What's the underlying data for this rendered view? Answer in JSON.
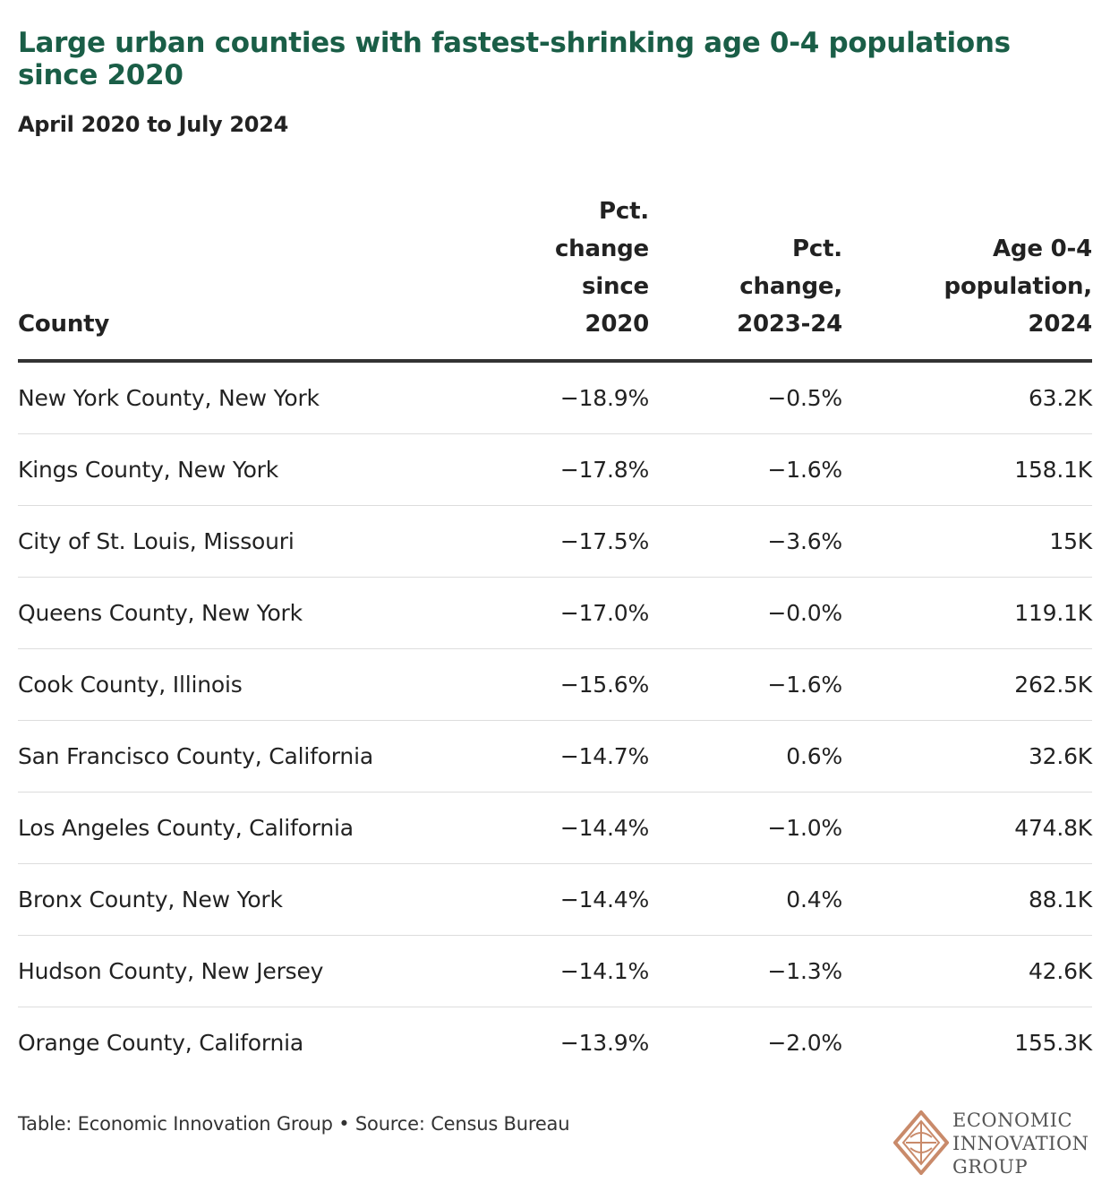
{
  "chart_data": {
    "type": "table",
    "title": "Large urban counties with fastest-shrinking age 0-4 populations since 2020",
    "subtitle": "April 2020 to July 2024",
    "columns": [
      {
        "label": "County",
        "align": "left"
      },
      {
        "label": "Pct. change since 2020",
        "align": "right"
      },
      {
        "label": "Pct. change, 2023-24",
        "align": "right"
      },
      {
        "label": "Age 0-4 population, 2024",
        "align": "right"
      }
    ],
    "rows": [
      {
        "county": "New York County, New York",
        "pct_change_since_2020": "−18.9%",
        "pct_change_2023_24": "−0.5%",
        "age_0_4_population_2024": "63.2K"
      },
      {
        "county": "Kings County, New York",
        "pct_change_since_2020": "−17.8%",
        "pct_change_2023_24": "−1.6%",
        "age_0_4_population_2024": "158.1K"
      },
      {
        "county": "City of St. Louis, Missouri",
        "pct_change_since_2020": "−17.5%",
        "pct_change_2023_24": "−3.6%",
        "age_0_4_population_2024": "15K"
      },
      {
        "county": "Queens County, New York",
        "pct_change_since_2020": "−17.0%",
        "pct_change_2023_24": "−0.0%",
        "age_0_4_population_2024": "119.1K"
      },
      {
        "county": "Cook County, Illinois",
        "pct_change_since_2020": "−15.6%",
        "pct_change_2023_24": "−1.6%",
        "age_0_4_population_2024": "262.5K"
      },
      {
        "county": "San Francisco County, California",
        "pct_change_since_2020": "−14.7%",
        "pct_change_2023_24": "0.6%",
        "age_0_4_population_2024": "32.6K"
      },
      {
        "county": "Los Angeles County, California",
        "pct_change_since_2020": "−14.4%",
        "pct_change_2023_24": "−1.0%",
        "age_0_4_population_2024": "474.8K"
      },
      {
        "county": "Bronx County, New York",
        "pct_change_since_2020": "−14.4%",
        "pct_change_2023_24": "0.4%",
        "age_0_4_population_2024": "88.1K"
      },
      {
        "county": "Hudson County, New Jersey",
        "pct_change_since_2020": "−14.1%",
        "pct_change_2023_24": "−1.3%",
        "age_0_4_population_2024": "42.6K"
      },
      {
        "county": "Orange County, California",
        "pct_change_since_2020": "−13.9%",
        "pct_change_2023_24": "−2.0%",
        "age_0_4_population_2024": "155.3K"
      }
    ]
  },
  "header_lines": {
    "col0": [
      "County"
    ],
    "col1": [
      "Pct.",
      "change",
      "since",
      "2020"
    ],
    "col2": [
      "Pct.",
      "change,",
      "2023-24"
    ],
    "col3": [
      "Age 0-4",
      "population,",
      "2024"
    ]
  },
  "footer": "Table: Economic Innovation Group • Source: Census Bureau",
  "logo": {
    "name_lines": [
      "ECONOMIC",
      "INNOVATION",
      "GROUP"
    ],
    "icon": "eig-diamond-logo-icon"
  },
  "colors": {
    "title": "#1a5e47",
    "logo_accent": "#c98a6a",
    "rule": "#333333"
  }
}
